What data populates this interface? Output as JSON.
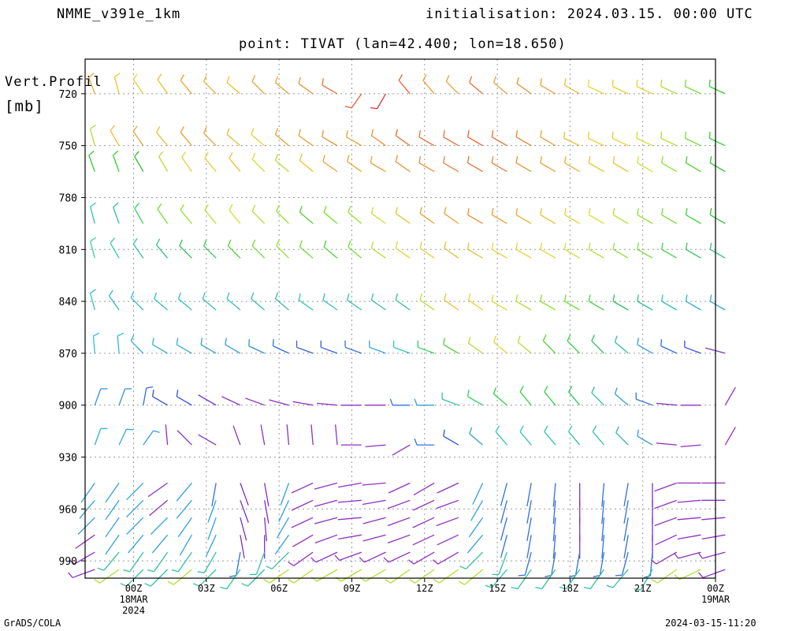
{
  "header": {
    "model": "NMME_v391e_1km",
    "init": "initialisation: 2024.03.15. 00:00 UTC",
    "point": "point: TIVAT (lan=42.400; lon=18.650)"
  },
  "footer": {
    "left": "GrADS/COLA",
    "right": "2024-03-15-11:20"
  },
  "chart_data": {
    "type": "wind-barb profile",
    "ylabel_line1": "Vert.Profil",
    "ylabel_line2": "[mb]",
    "y_ticks": [
      720,
      750,
      780,
      810,
      840,
      870,
      900,
      930,
      960,
      990
    ],
    "ylim": [
      700,
      1000
    ],
    "x_ticks": [
      {
        "hour": 0,
        "label": "00Z",
        "sub1": "18MAR",
        "sub2": "2024"
      },
      {
        "hour": 3,
        "label": "03Z",
        "sub1": "",
        "sub2": ""
      },
      {
        "hour": 6,
        "label": "06Z",
        "sub1": "",
        "sub2": ""
      },
      {
        "hour": 9,
        "label": "09Z",
        "sub1": "",
        "sub2": ""
      },
      {
        "hour": 12,
        "label": "12Z",
        "sub1": "",
        "sub2": ""
      },
      {
        "hour": 15,
        "label": "15Z",
        "sub1": "",
        "sub2": ""
      },
      {
        "hour": 18,
        "label": "18Z",
        "sub1": "",
        "sub2": ""
      },
      {
        "hour": 21,
        "label": "21Z",
        "sub1": "",
        "sub2": ""
      },
      {
        "hour": 24,
        "label": "00Z",
        "sub1": "19MAR",
        "sub2": ""
      }
    ],
    "xlim_hours": [
      -2,
      24
    ],
    "grid": true,
    "upper_levels": [
      {
        "p": 720,
        "dir": [
          340,
          345,
          325,
          325,
          320,
          315,
          310,
          315,
          310,
          305,
          300,
          215,
          210,
          320,
          320,
          315,
          310,
          310,
          305,
          300,
          300,
          295,
          295,
          295,
          295,
          295,
          295
        ],
        "col": [
          "#e8a830",
          "#e8c030",
          "#e8d030",
          "#e8c030",
          "#e8a030",
          "#e8b030",
          "#e8c030",
          "#e8a030",
          "#e8a030",
          "#e89030",
          "#e87030",
          "#e86030",
          "#e83030",
          "#e86030",
          "#e8a030",
          "#e8a030",
          "#e87030",
          "#e8a030",
          "#e89030",
          "#e8a030",
          "#e8c030",
          "#e8d830",
          "#e8d030",
          "#e8d030",
          "#b0e030",
          "#70e030",
          "#30d030"
        ]
      },
      {
        "p": 750,
        "dir": [
          345,
          330,
          325,
          320,
          320,
          315,
          310,
          310,
          310,
          305,
          300,
          300,
          305,
          305,
          300,
          300,
          300,
          300,
          300,
          300,
          295,
          295,
          295,
          295,
          295,
          295,
          295
        ],
        "col": [
          "#b0e030",
          "#e8c030",
          "#e8a030",
          "#e8c030",
          "#e8a030",
          "#e8a030",
          "#e8c030",
          "#e8d030",
          "#e8a030",
          "#e8a030",
          "#e89030",
          "#e8a030",
          "#e89030",
          "#e87030",
          "#e87030",
          "#e87030",
          "#e86030",
          "#e87030",
          "#e88030",
          "#e8a030",
          "#e8c030",
          "#e8d030",
          "#e8d030",
          "#d0e030",
          "#b0e030",
          "#70e030",
          "#30d030"
        ]
      },
      {
        "p": 765,
        "dir": [
          340,
          340,
          330,
          330,
          325,
          320,
          320,
          315,
          310,
          310,
          305,
          305,
          300,
          305,
          300,
          300,
          300,
          300,
          300,
          300,
          300,
          300,
          300,
          300,
          300,
          300,
          300
        ],
        "col": [
          "#30d030",
          "#30d030",
          "#30c030",
          "#b0e030",
          "#e8d030",
          "#e8d030",
          "#e8c030",
          "#d0e030",
          "#b0e030",
          "#e8c030",
          "#e8a030",
          "#e8a030",
          "#e8a030",
          "#e89030",
          "#e89030",
          "#e88030",
          "#e87030",
          "#e88030",
          "#e89030",
          "#e8a030",
          "#e8b030",
          "#e8c030",
          "#e8c030",
          "#d0e030",
          "#90e030",
          "#50d030",
          "#30c030"
        ]
      },
      {
        "p": 795,
        "dir": [
          345,
          340,
          330,
          325,
          320,
          320,
          320,
          315,
          315,
          310,
          310,
          310,
          305,
          305,
          305,
          305,
          300,
          300,
          300,
          300,
          300,
          300,
          300,
          300,
          300,
          300,
          300
        ],
        "col": [
          "#30c0c0",
          "#30c090",
          "#30d060",
          "#70e030",
          "#90e030",
          "#b0e030",
          "#d0e030",
          "#b0e030",
          "#90e030",
          "#50d030",
          "#70e030",
          "#90e030",
          "#d0e030",
          "#e8c030",
          "#e8a030",
          "#e8a030",
          "#e89030",
          "#e8a030",
          "#e8b030",
          "#e8c030",
          "#e8d030",
          "#d0e030",
          "#b0e030",
          "#90e030",
          "#70e030",
          "#40d040",
          "#30c030"
        ]
      },
      {
        "p": 815,
        "dir": [
          345,
          330,
          325,
          320,
          315,
          315,
          315,
          315,
          315,
          310,
          310,
          310,
          305,
          305,
          305,
          305,
          300,
          300,
          300,
          300,
          300,
          300,
          300,
          300,
          300,
          300,
          300
        ],
        "col": [
          "#30d0a0",
          "#30d090",
          "#30c0a0",
          "#30c080",
          "#30c060",
          "#30d050",
          "#50d030",
          "#70e030",
          "#90e030",
          "#70e030",
          "#50d040",
          "#70e030",
          "#b0e030",
          "#e8d030",
          "#e8d030",
          "#e8c030",
          "#e8c030",
          "#e8d030",
          "#e8d030",
          "#e8d030",
          "#d0e030",
          "#b0e030",
          "#90e030",
          "#70e030",
          "#40d050",
          "#30c060",
          "#30c080"
        ]
      },
      {
        "p": 845,
        "dir": [
          345,
          325,
          315,
          310,
          310,
          310,
          310,
          310,
          310,
          305,
          305,
          305,
          305,
          305,
          305,
          305,
          305,
          300,
          300,
          300,
          300,
          300,
          300,
          300,
          300,
          300,
          300
        ],
        "col": [
          "#30c0c0",
          "#30b8d0",
          "#30b8d0",
          "#30b8d0",
          "#30c0c0",
          "#30c0b0",
          "#30c0c0",
          "#30c0b0",
          "#30c0a0",
          "#30c0b0",
          "#30c0c0",
          "#30c0b0",
          "#30c0a0",
          "#30c090",
          "#b0e030",
          "#e8c030",
          "#e8d030",
          "#d0e030",
          "#b0e030",
          "#90e030",
          "#70e030",
          "#50d040",
          "#30c060",
          "#30c090",
          "#30c0b0",
          "#30b8c0",
          "#30b0d0"
        ]
      },
      {
        "p": 870,
        "dir": [
          355,
          355,
          315,
          300,
          300,
          300,
          300,
          295,
          295,
          290,
          290,
          290,
          290,
          290,
          290,
          300,
          305,
          310,
          310,
          315,
          315,
          315,
          310,
          300,
          295,
          290,
          285
        ],
        "col": [
          "#30c0d0",
          "#30b8d0",
          "#30b0d0",
          "#30b0d0",
          "#30b0d0",
          "#30a0e0",
          "#30a0e0",
          "#3090e0",
          "#3070e0",
          "#3060e0",
          "#3060e0",
          "#3070e0",
          "#30a0e0",
          "#30c0c0",
          "#30d060",
          "#50d030",
          "#b0e030",
          "#e8d030",
          "#b0e030",
          "#50d030",
          "#30d040",
          "#30c060",
          "#30c090",
          "#30a0d0",
          "#3070e0",
          "#3050e0",
          "#8030c0"
        ]
      },
      {
        "p": 900,
        "dir": [
          20,
          20,
          10,
          300,
          300,
          300,
          295,
          290,
          285,
          280,
          275,
          270,
          270,
          270,
          270,
          290,
          300,
          310,
          320,
          320,
          320,
          315,
          310,
          290,
          275,
          270,
          30
        ],
        "col": [
          "#3090e0",
          "#3090e0",
          "#3070e0",
          "#3050e0",
          "#3050e0",
          "#6030d0",
          "#8030c0",
          "#9030c0",
          "#9030c0",
          "#9030c0",
          "#9030c0",
          "#9030c0",
          "#9030c0",
          "#3070e0",
          "#30a0d0",
          "#30c0a0",
          "#30d060",
          "#30d040",
          "#30d040",
          "#30d040",
          "#30c060",
          "#30c090",
          "#30a0d0",
          "#3070e0",
          "#8030c0",
          "#9030c0",
          "#9030c0"
        ]
      },
      {
        "p": 923,
        "dir": [
          20,
          25,
          35,
          355,
          315,
          300,
          340,
          350,
          355,
          355,
          355,
          270,
          265,
          240,
          270,
          300,
          310,
          320,
          320,
          320,
          320,
          320,
          315,
          300,
          275,
          265,
          30
        ],
        "col": [
          "#30b0d0",
          "#30b0d0",
          "#30a0e0",
          "#9030c0",
          "#8030c0",
          "#9030c0",
          "#9030c0",
          "#9030c0",
          "#9030c0",
          "#9030c0",
          "#9030c0",
          "#9030c0",
          "#9030c0",
          "#9030c0",
          "#3070e0",
          "#3050e0",
          "#30a0d0",
          "#30c0c0",
          "#30c0c0",
          "#30c0b0",
          "#30c0a0",
          "#30c0a0",
          "#30b0c0",
          "#30a0d0",
          "#9030c0",
          "#9030c0",
          "#9030c0"
        ]
      }
    ],
    "low_levels": [
      {
        "p": 945,
        "dir": [
          215,
          215,
          225,
          235,
          220,
          190,
          160,
          170,
          200,
          245,
          255,
          260,
          265,
          245,
          240,
          245,
          205,
          195,
          190,
          185,
          180,
          185,
          190,
          180,
          250,
          270,
          270
        ]
      },
      {
        "p": 955,
        "dir": [
          220,
          215,
          225,
          230,
          220,
          200,
          160,
          170,
          205,
          245,
          255,
          265,
          260,
          250,
          245,
          250,
          210,
          195,
          190,
          185,
          180,
          185,
          190,
          180,
          250,
          265,
          270
        ]
      },
      {
        "p": 965,
        "dir": [
          225,
          215,
          225,
          225,
          215,
          200,
          165,
          175,
          210,
          245,
          255,
          265,
          255,
          250,
          245,
          250,
          215,
          195,
          190,
          185,
          180,
          185,
          190,
          180,
          250,
          265,
          265
        ]
      },
      {
        "p": 975,
        "dir": [
          235,
          215,
          220,
          220,
          210,
          205,
          170,
          180,
          215,
          240,
          250,
          260,
          255,
          250,
          245,
          245,
          220,
          195,
          190,
          185,
          180,
          185,
          190,
          180,
          245,
          260,
          260
        ]
      },
      {
        "p": 985,
        "dir": [
          240,
          220,
          215,
          215,
          215,
          210,
          190,
          200,
          225,
          235,
          245,
          250,
          245,
          245,
          240,
          240,
          225,
          200,
          195,
          190,
          190,
          190,
          195,
          185,
          240,
          255,
          255
        ]
      },
      {
        "p": 995,
        "dir": [
          250,
          235,
          225,
          225,
          230,
          225,
          215,
          225,
          235,
          235,
          240,
          240,
          240,
          235,
          235,
          235,
          230,
          220,
          215,
          215,
          215,
          215,
          220,
          210,
          235,
          245,
          250
        ]
      }
    ]
  }
}
